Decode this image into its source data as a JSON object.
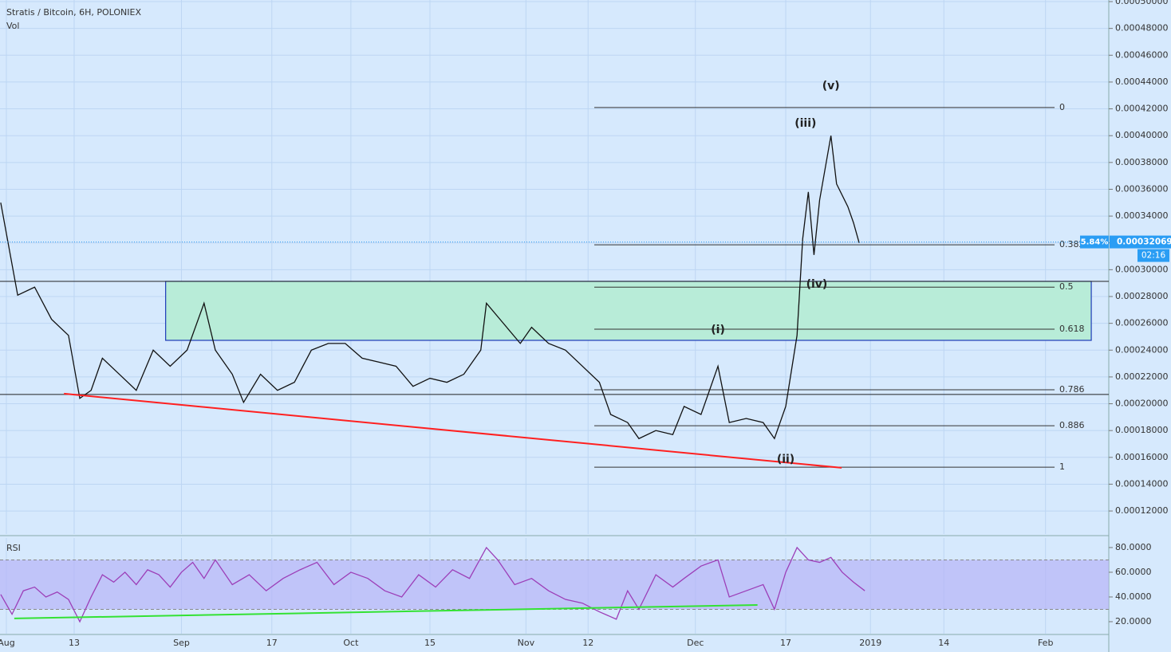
{
  "chart_data": [
    {
      "type": "line",
      "title": "Stratis / Bitcoin, 6H, POLONIEX",
      "subtitle": "Vol",
      "color": "#111111",
      "x": [
        -1,
        2,
        5,
        8,
        11,
        13,
        15,
        17,
        20,
        23,
        26,
        29,
        32,
        35,
        37,
        40,
        42,
        45,
        48,
        51,
        54,
        57,
        60,
        63,
        66,
        69,
        72,
        75,
        78,
        81,
        84,
        85,
        88,
        91,
        93,
        96,
        99,
        102,
        105,
        107,
        110,
        112,
        115,
        118,
        120,
        123,
        126,
        128,
        131,
        134,
        136,
        138,
        140,
        141,
        142,
        143,
        144,
        146,
        147,
        149,
        150,
        151
      ],
      "values": [
        0.00035,
        0.000281,
        0.000287,
        0.000263,
        0.000251,
        0.000204,
        0.00021,
        0.000234,
        0.000222,
        0.00021,
        0.00024,
        0.000228,
        0.00024,
        0.000275,
        0.00024,
        0.000222,
        0.000201,
        0.000222,
        0.00021,
        0.000216,
        0.00024,
        0.000245,
        0.000245,
        0.000234,
        0.000231,
        0.000228,
        0.000213,
        0.000219,
        0.000216,
        0.000222,
        0.00024,
        0.000275,
        0.00026,
        0.000245,
        0.000257,
        0.000245,
        0.00024,
        0.000228,
        0.000216,
        0.000192,
        0.000186,
        0.000174,
        0.00018,
        0.000177,
        0.000198,
        0.000192,
        0.000228,
        0.000186,
        0.000189,
        0.000186,
        0.000174,
        0.000198,
        0.000251,
        0.000323,
        0.000358,
        0.000311,
        0.000352,
        0.0004,
        0.000364,
        0.000347,
        0.000335,
        0.00032
      ],
      "xlim": [
        -1.13,
        195.2
      ],
      "xticks": [
        {
          "value": 0,
          "label": "Aug"
        },
        {
          "value": 12,
          "label": "13"
        },
        {
          "value": 31,
          "label": "Sep"
        },
        {
          "value": 47,
          "label": "17"
        },
        {
          "value": 61,
          "label": "Oct"
        },
        {
          "value": 75,
          "label": "15"
        },
        {
          "value": 92,
          "label": "Nov"
        },
        {
          "value": 103,
          "label": "12"
        },
        {
          "value": 122,
          "label": "Dec"
        },
        {
          "value": 138,
          "label": "17"
        },
        {
          "value": 153,
          "label": "2019"
        },
        {
          "value": 166,
          "label": "14"
        },
        {
          "value": 184,
          "label": "Feb"
        }
      ],
      "ylim": [
        0.0001028,
        0.0005012
      ],
      "yticks": [
        {
          "value": 0.00012,
          "label": "0.00012000"
        },
        {
          "value": 0.00014,
          "label": "0.00014000"
        },
        {
          "value": 0.00016,
          "label": "0.00016000"
        },
        {
          "value": 0.00018,
          "label": "0.00018000"
        },
        {
          "value": 0.0002,
          "label": "0.00020000"
        },
        {
          "value": 0.00022,
          "label": "0.00022000"
        },
        {
          "value": 0.00024,
          "label": "0.00024000"
        },
        {
          "value": 0.00026,
          "label": "0.00026000"
        },
        {
          "value": 0.00028,
          "label": "0.00028000"
        },
        {
          "value": 0.0003,
          "label": "0.00030000"
        },
        {
          "value": 0.00032,
          "label": "0.00032000"
        },
        {
          "value": 0.00034,
          "label": "0.00034000"
        },
        {
          "value": 0.00036,
          "label": "0.00036000"
        },
        {
          "value": 0.00038,
          "label": "0.00038000"
        },
        {
          "value": 0.0004,
          "label": "0.00040000"
        },
        {
          "value": 0.00042,
          "label": "0.00042000"
        },
        {
          "value": 0.00044,
          "label": "0.00044000"
        },
        {
          "value": 0.00046,
          "label": "0.00046000"
        },
        {
          "value": 0.00048,
          "label": "0.00048000"
        },
        {
          "value": 0.0005,
          "label": "0.00050000"
        }
      ],
      "grid": true,
      "last_price": 0.00032069,
      "change_label": "5.84%",
      "countdown": "02:16",
      "fib_levels": [
        0,
        0.382,
        0.5,
        0.618,
        0.786,
        0.886,
        1
      ],
      "fib_prices": [
        0.000421,
        0.0003186,
        0.000287,
        0.0002556,
        0.0002104,
        0.0001836,
        0.0001527
      ],
      "fib_x": [
        104.1,
        185.6
      ],
      "zone": {
        "x": [
          28.2,
          192.1
        ],
        "y": [
          0.0002473,
          0.0002913
        ]
      },
      "hlines": [
        0.0002913,
        0.0002069
      ],
      "trendline": {
        "x": [
          10.2,
          147.9
        ],
        "y": [
          0.0002075,
          0.0001522
        ],
        "color": "#ff2020"
      },
      "annotations": [
        {
          "text": "(i)",
          "x": 126,
          "y": 0.000255
        },
        {
          "text": "(ii)",
          "x": 138,
          "y": 0.0001585
        },
        {
          "text": "(iii)",
          "x": 141.5,
          "y": 0.000409
        },
        {
          "text": "(iv)",
          "x": 143.5,
          "y": 0.000289
        },
        {
          "text": "(v)",
          "x": 146,
          "y": 0.000437
        }
      ]
    },
    {
      "type": "line",
      "title": "RSI",
      "color": "#9c3fb8",
      "x": [
        -1,
        1,
        3,
        5,
        7,
        9,
        11,
        13,
        15,
        17,
        19,
        21,
        23,
        25,
        27,
        29,
        31,
        33,
        35,
        37,
        40,
        43,
        46,
        49,
        52,
        55,
        58,
        61,
        64,
        67,
        70,
        73,
        76,
        79,
        82,
        85,
        87,
        90,
        93,
        96,
        99,
        102,
        105,
        108,
        110,
        112,
        115,
        118,
        120,
        123,
        126,
        128,
        131,
        134,
        136,
        138,
        140,
        142,
        144,
        146,
        148,
        150,
        152
      ],
      "values": [
        42,
        26,
        45,
        48,
        40,
        44,
        38,
        20,
        40,
        58,
        52,
        60,
        50,
        62,
        58,
        48,
        60,
        68,
        55,
        70,
        50,
        58,
        45,
        55,
        62,
        68,
        50,
        60,
        55,
        45,
        40,
        58,
        48,
        62,
        55,
        80,
        70,
        50,
        55,
        45,
        38,
        35,
        28,
        22,
        45,
        30,
        58,
        48,
        55,
        65,
        70,
        40,
        45,
        50,
        30,
        60,
        80,
        70,
        68,
        72,
        60,
        52,
        45
      ],
      "xlim": [
        -1.13,
        195.2
      ],
      "ylim": [
        10.3,
        87.7
      ],
      "yticks": [
        {
          "value": 20,
          "label": "20.0000"
        },
        {
          "value": 40,
          "label": "40.0000"
        },
        {
          "value": 60,
          "label": "60.0000"
        },
        {
          "value": 80,
          "label": "80.0000"
        }
      ],
      "band": [
        30,
        70
      ],
      "trendline": {
        "x": [
          1.4,
          133
        ],
        "y": [
          22.6,
          33.5
        ],
        "color": "#33e233"
      }
    }
  ]
}
